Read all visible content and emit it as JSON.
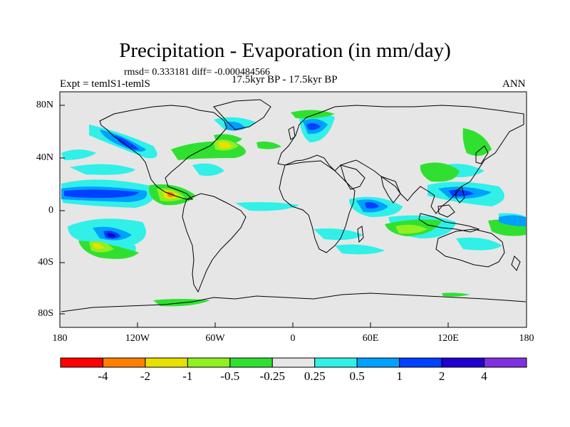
{
  "title": "Precipitation - Evaporation (in mm/day)",
  "stats": "rmsd= 0.333181 diff= -0.000484566",
  "experiment": "Expt = temlS1-temlS",
  "period": "17.5kyr BP - 17.5kyr BP",
  "season": "ANN",
  "x_ticks": [
    "180",
    "120W",
    "60W",
    "0",
    "60E",
    "120E",
    "180"
  ],
  "y_ticks": [
    "80N",
    "40N",
    "0",
    "40S",
    "80S"
  ],
  "colorbar": {
    "colors": [
      "#ff0000",
      "#ff8000",
      "#e8e000",
      "#90f020",
      "#30e030",
      "#e6e6e6",
      "#30f0e8",
      "#00a0ff",
      "#0040ff",
      "#2000d0",
      "#8030e0"
    ],
    "labels": [
      "-4",
      "-2",
      "-1",
      "-0.5",
      "-0.25",
      "0.25",
      "0.5",
      "1",
      "2",
      "4"
    ]
  },
  "map_colors": {
    "ocean": "#e6e6e6",
    "coast": "#000000"
  }
}
